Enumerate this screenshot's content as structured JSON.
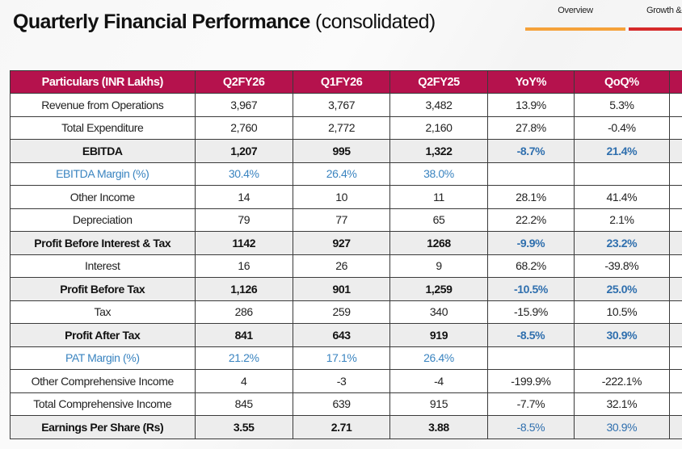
{
  "title": {
    "bold": "Quarterly Financial Performance",
    "light": "(consolidated)"
  },
  "nav": {
    "tabs": [
      {
        "label": "Overview",
        "color": "#f5a23a"
      },
      {
        "label": "Growth &",
        "color": "#d62a2a"
      }
    ]
  },
  "colors": {
    "header_bg": "#b5124d",
    "accent_blue": "#3a84c0"
  },
  "table": {
    "headers": [
      "Particulars (INR Lakhs)",
      "Q2FY26",
      "Q1FY26",
      "Q2FY25",
      "YoY%",
      "QoQ%"
    ],
    "rows": [
      {
        "style": "normal",
        "cells": [
          "Revenue from Operations",
          "3,967",
          "3,767",
          "3,482",
          "13.9%",
          "5.3%"
        ]
      },
      {
        "style": "normal",
        "cells": [
          "Total Expenditure",
          "2,760",
          "2,772",
          "2,160",
          "27.8%",
          "-0.4%"
        ]
      },
      {
        "style": "bold",
        "cells": [
          "EBITDA",
          "1,207",
          "995",
          "1,322",
          "-8.7%",
          "21.4%"
        ]
      },
      {
        "style": "margin",
        "cells": [
          "EBITDA Margin (%)",
          "30.4%",
          "26.4%",
          "38.0%",
          "",
          ""
        ]
      },
      {
        "style": "normal",
        "cells": [
          "Other Income",
          "14",
          "10",
          "11",
          "28.1%",
          "41.4%"
        ]
      },
      {
        "style": "normal",
        "cells": [
          "Depreciation",
          "79",
          "77",
          "65",
          "22.2%",
          "2.1%"
        ]
      },
      {
        "style": "bold",
        "cells": [
          "Profit Before Interest & Tax",
          "1142",
          "927",
          "1268",
          "-9.9%",
          "23.2%"
        ]
      },
      {
        "style": "normal",
        "cells": [
          "Interest",
          "16",
          "26",
          "9",
          "68.2%",
          "-39.8%"
        ]
      },
      {
        "style": "bold",
        "cells": [
          "Profit Before Tax",
          "1,126",
          "901",
          "1,259",
          "-10.5%",
          "25.0%"
        ]
      },
      {
        "style": "normal",
        "cells": [
          "Tax",
          "286",
          "259",
          "340",
          "-15.9%",
          "10.5%"
        ]
      },
      {
        "style": "bold",
        "cells": [
          "Profit After Tax",
          "841",
          "643",
          "919",
          "-8.5%",
          "30.9%"
        ]
      },
      {
        "style": "margin",
        "cells": [
          "PAT Margin (%)",
          "21.2%",
          "17.1%",
          "26.4%",
          "",
          ""
        ]
      },
      {
        "style": "normal",
        "cells": [
          "Other Comprehensive Income",
          "4",
          "-3",
          "-4",
          "-199.9%",
          "-222.1%"
        ]
      },
      {
        "style": "normal",
        "cells": [
          "Total Comprehensive Income",
          "845",
          "639",
          "915",
          "-7.7%",
          "32.1%"
        ]
      },
      {
        "style": "eps",
        "cells": [
          "Earnings Per Share (Rs)",
          "3.55",
          "2.71",
          "3.88",
          "-8.5%",
          "30.9%"
        ]
      }
    ]
  }
}
